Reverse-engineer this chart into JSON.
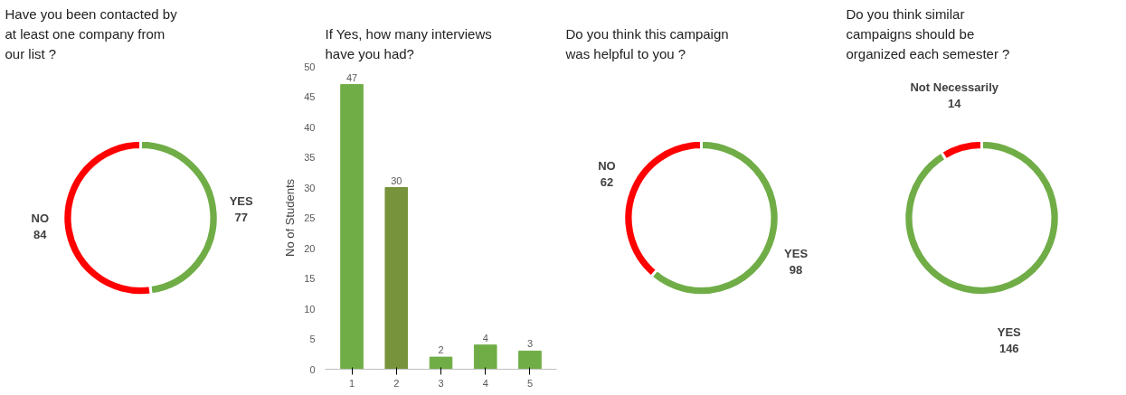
{
  "chart_data": [
    {
      "type": "donut",
      "title": "Have you been contacted by at least one company from our list ?",
      "categories": [
        "YES",
        "NO"
      ],
      "values": [
        77,
        84
      ],
      "colors": [
        "#70ad47",
        "#ff0000"
      ],
      "data_labels": true,
      "legend": false
    },
    {
      "type": "bar",
      "title": "If Yes, how many interviews have you had?",
      "ylabel": "No of Students",
      "categories": [
        "1",
        "2",
        "3",
        "4",
        "5"
      ],
      "values": [
        47,
        30,
        2,
        4,
        3
      ],
      "colors": [
        "#70ad47",
        "#77933c",
        "#70ad47",
        "#70ad47",
        "#70ad47"
      ],
      "ylim": [
        0,
        50
      ],
      "yticks": [
        0,
        5,
        10,
        15,
        20,
        25,
        30,
        35,
        40,
        45,
        50
      ],
      "data_labels": true,
      "grid": false,
      "legend": false
    },
    {
      "type": "donut",
      "title": "Do you think this campaign was helpful to you ?",
      "categories": [
        "YES",
        "NO"
      ],
      "values": [
        98,
        62
      ],
      "colors": [
        "#70ad47",
        "#ff0000"
      ],
      "data_labels": true,
      "legend": false
    },
    {
      "type": "donut",
      "title": "Do you think similar campaigns should be organized each semester ?",
      "categories": [
        "YES",
        "Not Necessarily"
      ],
      "values": [
        146,
        14
      ],
      "colors": [
        "#70ad47",
        "#ff0000"
      ],
      "data_labels": true,
      "legend": false
    }
  ]
}
